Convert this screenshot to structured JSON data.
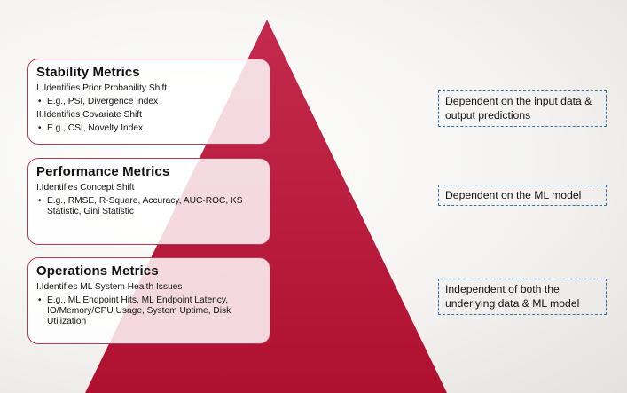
{
  "colors": {
    "pyramid_top": "#c42a4e",
    "pyramid_bottom": "#b0102f",
    "box_border": "#b33a52",
    "note_border": "#2f6fb3"
  },
  "tiers": [
    {
      "title": "Stability Metrics",
      "lines": [
        {
          "text": "I. Identifies Prior Probability Shift",
          "bullet": false
        },
        {
          "text": "E.g., PSI, Divergence Index",
          "bullet": true
        },
        {
          "text": "II.Identifies Covariate Shift",
          "bullet": false
        },
        {
          "text": "E.g., CSI, Novelty Index",
          "bullet": true
        }
      ]
    },
    {
      "title": "Performance Metrics",
      "lines": [
        {
          "text": "I.Identifies Concept Shift",
          "bullet": false
        },
        {
          "text": "E.g., RMSE, R-Square, Accuracy,  AUC-ROC, KS Statistic, Gini Statistic",
          "bullet": true
        }
      ]
    },
    {
      "title": "Operations Metrics",
      "lines": [
        {
          "text": "I.Identifies ML System Health Issues",
          "bullet": false
        },
        {
          "text": "E.g., ML Endpoint Hits, ML Endpoint Latency, IO/Memory/CPU Usage, System Uptime, Disk Utilization",
          "bullet": true
        }
      ]
    }
  ],
  "notes": [
    "Dependent on the input data & output predictions",
    "Dependent on the ML model",
    "Independent of both the underlying data & ML model"
  ]
}
